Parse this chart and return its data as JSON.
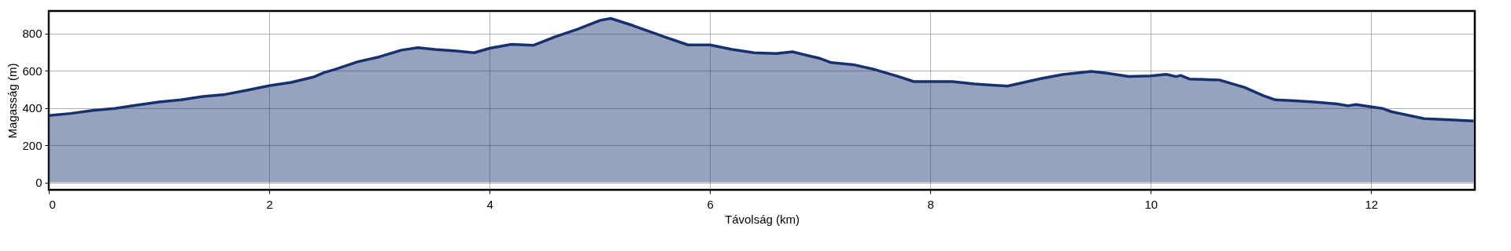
{
  "chart_data": {
    "type": "area",
    "xlabel": "Távolság (km)",
    "ylabel": "Magasság (m)",
    "x": [
      0,
      0.2,
      0.4,
      0.6,
      0.8,
      1.0,
      1.2,
      1.4,
      1.6,
      1.8,
      2.0,
      2.2,
      2.4,
      2.5,
      2.6,
      2.8,
      3.0,
      3.2,
      3.35,
      3.5,
      3.7,
      3.86,
      4.0,
      4.2,
      4.4,
      4.6,
      4.8,
      5.0,
      5.1,
      5.3,
      5.6,
      5.8,
      6.0,
      6.2,
      6.4,
      6.6,
      6.75,
      6.9,
      7.0,
      7.1,
      7.3,
      7.5,
      7.7,
      7.85,
      8.0,
      8.2,
      8.4,
      8.5,
      8.7,
      9.0,
      9.2,
      9.4,
      9.46,
      9.6,
      9.8,
      10.0,
      10.14,
      10.23,
      10.27,
      10.35,
      10.55,
      10.62,
      10.85,
      11.02,
      11.13,
      11.31,
      11.48,
      11.69,
      11.79,
      11.86,
      12.1,
      12.18,
      12.48,
      12.68,
      12.93
    ],
    "series": [
      {
        "color": "#17306e",
        "values": [
          359,
          370,
          386,
          397,
          415,
          432,
          443,
          461,
          472,
          495,
          519,
          537,
          565,
          590,
          607,
          647,
          674,
          710,
          723,
          714,
          705,
          696,
          720,
          741,
          736,
          783,
          823,
          869,
          880,
          842,
          778,
          738,
          738,
          714,
          696,
          692,
          701,
          679,
          665,
          643,
          632,
          605,
          570,
          541,
          541,
          541,
          528,
          524,
          517,
          557,
          579,
          592,
          596,
          586,
          568,
          572,
          580,
          568,
          574,
          555,
          551,
          550,
          510,
          466,
          443,
          438,
          432,
          421,
          411,
          418,
          397,
          380,
          342,
          337,
          329
        ]
      }
    ],
    "xlim": [
      0,
      12.94
    ],
    "xticks": [
      0,
      2,
      4,
      6,
      8,
      10,
      12
    ],
    "ylim": [
      -40,
      920
    ],
    "yticks": [
      0,
      200,
      400,
      600,
      800
    ],
    "grid": true
  }
}
